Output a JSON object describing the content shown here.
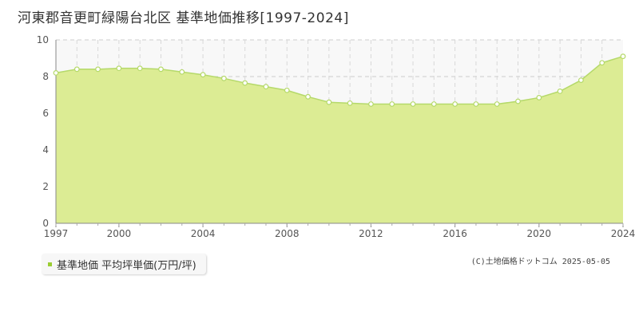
{
  "header": {
    "title": "河東郡音更町緑陽台北区  基準地価推移[1997-2024]"
  },
  "legend": {
    "label": "基準地価 平均坪単価(万円/坪)"
  },
  "footer": {
    "copyright": "(C)土地価格ドットコム 2025-05-05"
  },
  "colors": {
    "fill": "#dcec94",
    "line": "#b5d96a",
    "marker": "#9acd32",
    "legend_swatch": "#9acd32"
  },
  "chart_data": {
    "type": "area",
    "title": "",
    "xlabel": "",
    "ylabel": "",
    "x": [
      1997,
      1998,
      1999,
      2000,
      2001,
      2002,
      2003,
      2004,
      2005,
      2006,
      2007,
      2008,
      2009,
      2010,
      2011,
      2012,
      2013,
      2014,
      2015,
      2016,
      2017,
      2018,
      2019,
      2020,
      2021,
      2022,
      2023,
      2024
    ],
    "series": [
      {
        "name": "基準地価 平均坪単価(万円/坪)",
        "values": [
          8.2,
          8.4,
          8.4,
          8.45,
          8.45,
          8.4,
          8.25,
          8.1,
          7.9,
          7.65,
          7.45,
          7.25,
          6.9,
          6.6,
          6.55,
          6.5,
          6.5,
          6.5,
          6.5,
          6.5,
          6.5,
          6.5,
          6.65,
          6.85,
          7.2,
          7.8,
          8.75,
          9.1
        ]
      }
    ],
    "xlim": [
      1997,
      2024
    ],
    "ylim": [
      0,
      10
    ],
    "x_ticks": [
      "1997",
      "2000",
      "2004",
      "2008",
      "2012",
      "2016",
      "2020",
      "2024"
    ],
    "y_ticks": [
      "0",
      "2",
      "4",
      "6",
      "8",
      "10"
    ],
    "grid": true,
    "legend_position": "bottom-left"
  }
}
